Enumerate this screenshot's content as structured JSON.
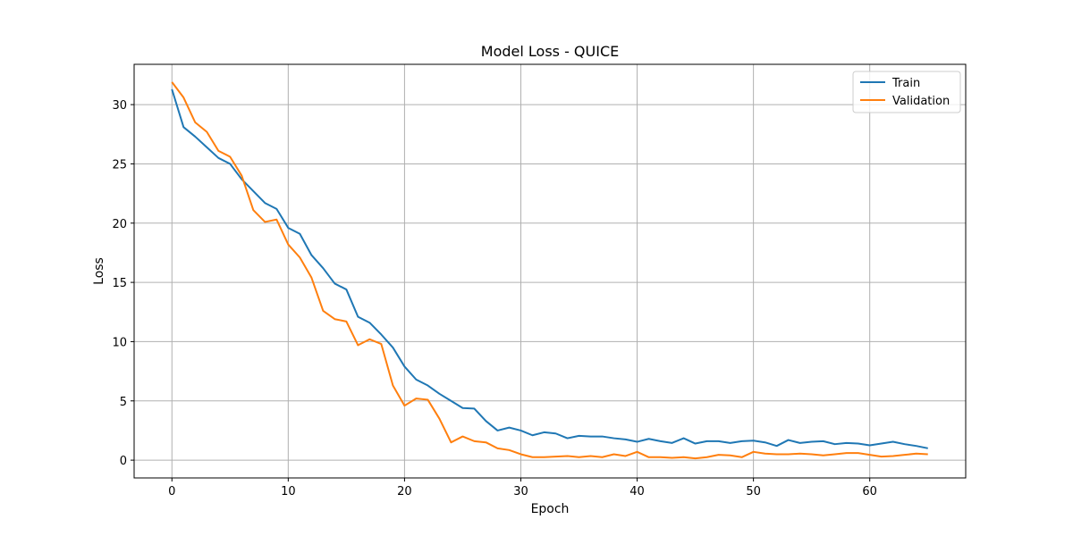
{
  "chart_data": {
    "type": "line",
    "title": "Model Loss - QUICE",
    "xlabel": "Epoch",
    "ylabel": "Loss",
    "xlim": [
      -3.25,
      68.25
    ],
    "ylim": [
      -1.5,
      33.4
    ],
    "xticks": [
      0,
      10,
      20,
      30,
      40,
      50,
      60
    ],
    "yticks": [
      0,
      5,
      10,
      15,
      20,
      25,
      30
    ],
    "grid": true,
    "legend_position": "top-right",
    "series": [
      {
        "name": "Train",
        "color": "#1f77b4",
        "x": [
          0,
          1,
          2,
          3,
          4,
          5,
          6,
          7,
          8,
          9,
          10,
          11,
          12,
          13,
          14,
          15,
          16,
          17,
          18,
          19,
          20,
          21,
          22,
          23,
          24,
          25,
          26,
          27,
          28,
          29,
          30,
          31,
          32,
          33,
          34,
          35,
          36,
          37,
          38,
          39,
          40,
          41,
          42,
          43,
          44,
          45,
          46,
          47,
          48,
          49,
          50,
          51,
          52,
          53,
          54,
          55,
          56,
          57,
          58,
          59,
          60,
          61,
          62,
          63,
          64,
          65
        ],
        "values": [
          31.3,
          28.1,
          27.3,
          26.4,
          25.5,
          25.0,
          23.7,
          22.7,
          21.7,
          21.2,
          19.6,
          19.1,
          17.3,
          16.2,
          14.9,
          14.4,
          12.1,
          11.6,
          10.6,
          9.5,
          7.9,
          6.8,
          6.3,
          5.6,
          5.0,
          4.4,
          4.35,
          3.3,
          2.5,
          2.75,
          2.5,
          2.1,
          2.35,
          2.25,
          1.85,
          2.05,
          2.0,
          2.0,
          1.85,
          1.75,
          1.55,
          1.8,
          1.6,
          1.45,
          1.85,
          1.4,
          1.6,
          1.6,
          1.45,
          1.6,
          1.65,
          1.5,
          1.2,
          1.7,
          1.45,
          1.55,
          1.6,
          1.35,
          1.45,
          1.4,
          1.25,
          1.4,
          1.55,
          1.35,
          1.2,
          1.0
        ]
      },
      {
        "name": "Validation",
        "color": "#ff7f0e",
        "x": [
          0,
          1,
          2,
          3,
          4,
          5,
          6,
          7,
          8,
          9,
          10,
          11,
          12,
          13,
          14,
          15,
          16,
          17,
          18,
          19,
          20,
          21,
          22,
          23,
          24,
          25,
          26,
          27,
          28,
          29,
          30,
          31,
          32,
          33,
          34,
          35,
          36,
          37,
          38,
          39,
          40,
          41,
          42,
          43,
          44,
          45,
          46,
          47,
          48,
          49,
          50,
          51,
          52,
          53,
          54,
          55,
          56,
          57,
          58,
          59,
          60,
          61,
          62,
          63,
          64,
          65
        ],
        "values": [
          31.9,
          30.6,
          28.5,
          27.7,
          26.1,
          25.6,
          24.0,
          21.1,
          20.1,
          20.3,
          18.2,
          17.1,
          15.4,
          12.6,
          11.9,
          11.7,
          9.7,
          10.2,
          9.8,
          6.3,
          4.6,
          5.2,
          5.1,
          3.5,
          1.5,
          2.0,
          1.6,
          1.5,
          1.0,
          0.85,
          0.5,
          0.25,
          0.25,
          0.3,
          0.35,
          0.25,
          0.35,
          0.25,
          0.5,
          0.35,
          0.7,
          0.25,
          0.25,
          0.2,
          0.25,
          0.15,
          0.25,
          0.45,
          0.4,
          0.25,
          0.7,
          0.55,
          0.5,
          0.5,
          0.55,
          0.5,
          0.4,
          0.5,
          0.6,
          0.6,
          0.45,
          0.3,
          0.35,
          0.45,
          0.55,
          0.5
        ]
      }
    ]
  }
}
